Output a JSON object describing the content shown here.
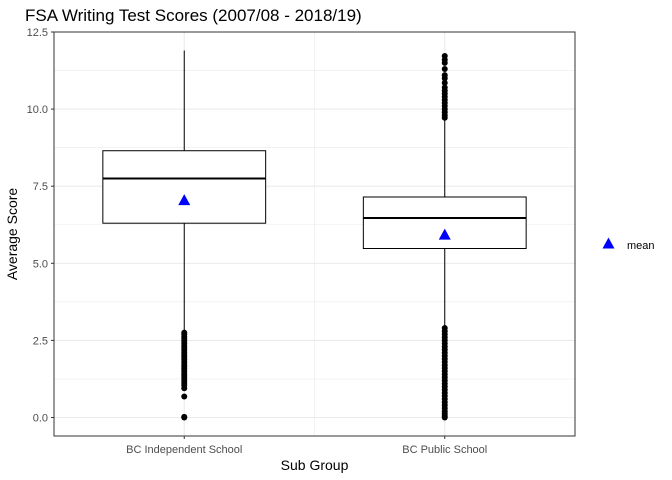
{
  "chart_data": {
    "type": "box",
    "title": "FSA Writing Test Scores (2007/08 - 2018/19)",
    "xlabel": "Sub Group",
    "ylabel": "Average Score",
    "ylim": [
      -0.6,
      12.5
    ],
    "yticks": [
      0.0,
      2.5,
      5.0,
      7.5,
      10.0,
      12.5
    ],
    "ytick_labels": [
      "0.0",
      "2.5",
      "5.0",
      "7.5",
      "10.0",
      "12.5"
    ],
    "grid": true,
    "categories": [
      "BC Independent School",
      "BC Public School"
    ],
    "boxes": [
      {
        "category": "BC Independent School",
        "whisker_low": 2.8,
        "q1": 6.3,
        "median": 7.75,
        "q3": 8.65,
        "whisker_high": 11.9,
        "mean": 7.05,
        "outliers_low": [
          0.0,
          0.02,
          0.68,
          0.95,
          1.05,
          1.12,
          1.2,
          1.28,
          1.35,
          1.42,
          1.5,
          1.58,
          1.65,
          1.72,
          1.8,
          1.88,
          1.95,
          2.02,
          2.1,
          2.18,
          2.25,
          2.32,
          2.4,
          2.48,
          2.55,
          2.62,
          2.7,
          2.75
        ],
        "outliers_high": []
      },
      {
        "category": "BC Public School",
        "whisker_low": 2.95,
        "q1": 5.48,
        "median": 6.47,
        "q3": 7.15,
        "whisker_high": 9.65,
        "mean": 5.93,
        "outliers_low": [
          0.0,
          0.05,
          0.12,
          0.2,
          0.3,
          0.4,
          0.5,
          0.6,
          0.7,
          0.8,
          0.9,
          1.0,
          1.1,
          1.2,
          1.3,
          1.4,
          1.5,
          1.6,
          1.7,
          1.8,
          1.9,
          2.0,
          2.1,
          2.2,
          2.3,
          2.4,
          2.5,
          2.6,
          2.7,
          2.8,
          2.9
        ],
        "outliers_high": [
          9.72,
          9.8,
          9.9,
          10.0,
          10.1,
          10.2,
          10.3,
          10.4,
          10.5,
          10.6,
          10.7,
          10.85,
          11.0,
          11.1,
          11.3,
          11.5,
          11.6,
          11.72
        ]
      }
    ],
    "legend": {
      "position": "right",
      "items": [
        {
          "label": "mean",
          "shape": "triangle",
          "color": "#0000ff"
        }
      ]
    },
    "colors": {
      "mean_marker": "#0000ff",
      "box_stroke": "#000000",
      "grid": "#ebebeb",
      "panel_border": "#333333"
    }
  }
}
